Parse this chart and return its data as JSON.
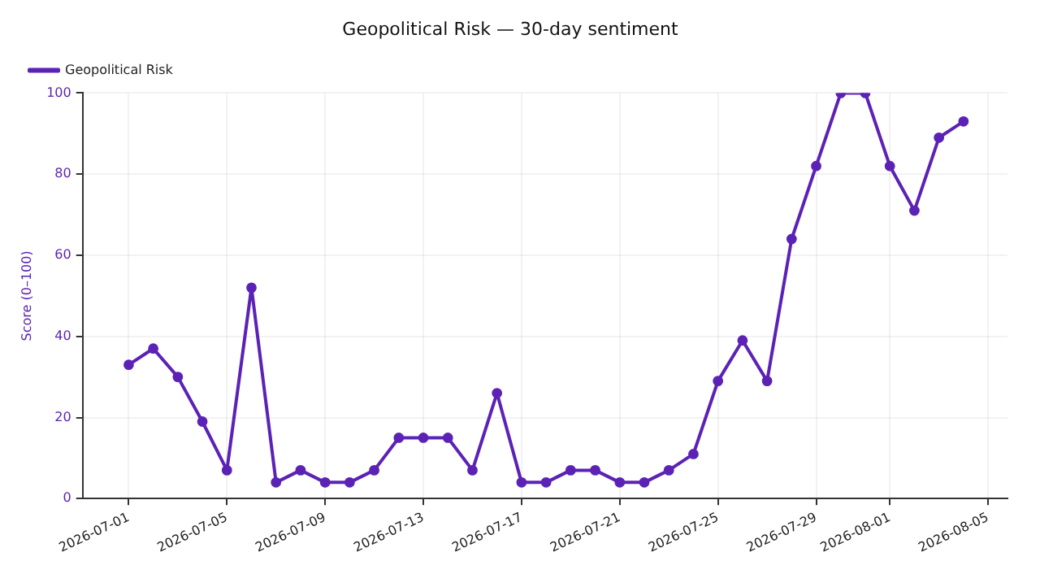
{
  "chart_data": {
    "type": "line",
    "title": "Geopolitical Risk — 30-day sentiment",
    "ylabel": "Score (0–100)",
    "x": [
      "2026-07-01",
      "2026-07-02",
      "2026-07-03",
      "2026-07-04",
      "2026-07-05",
      "2026-07-06",
      "2026-07-07",
      "2026-07-08",
      "2026-07-09",
      "2026-07-10",
      "2026-07-11",
      "2026-07-12",
      "2026-07-13",
      "2026-07-14",
      "2026-07-15",
      "2026-07-16",
      "2026-07-17",
      "2026-07-18",
      "2026-07-19",
      "2026-07-20",
      "2026-07-21",
      "2026-07-22",
      "2026-07-23",
      "2026-07-24",
      "2026-07-25",
      "2026-07-26",
      "2026-07-27",
      "2026-07-28",
      "2026-07-29",
      "2026-07-30",
      "2026-07-31",
      "2026-08-01",
      "2026-08-02",
      "2026-08-03",
      "2026-08-04"
    ],
    "series": [
      {
        "name": "Geopolitical Risk",
        "color": "#5b22b5",
        "values": [
          33,
          37,
          30,
          19,
          7,
          52,
          4,
          7,
          4,
          4,
          7,
          15,
          15,
          15,
          7,
          26,
          4,
          4,
          7,
          7,
          4,
          4,
          7,
          11,
          29,
          39,
          29,
          64,
          82,
          100,
          100,
          82,
          71,
          89,
          93
        ]
      }
    ],
    "xlim": [
      "2026-06-29T03:00",
      "2026-08-05T19:00"
    ],
    "xticks": [
      "2026-07-01",
      "2026-07-05",
      "2026-07-09",
      "2026-07-13",
      "2026-07-17",
      "2026-07-21",
      "2026-07-25",
      "2026-07-29",
      "2026-08-01",
      "2026-08-05"
    ],
    "ylim": [
      0,
      100
    ],
    "yticks": [
      0,
      20,
      40,
      60,
      80,
      100
    ],
    "grid": true,
    "legend": "top left",
    "marker": "circle",
    "line_style": "solid"
  }
}
